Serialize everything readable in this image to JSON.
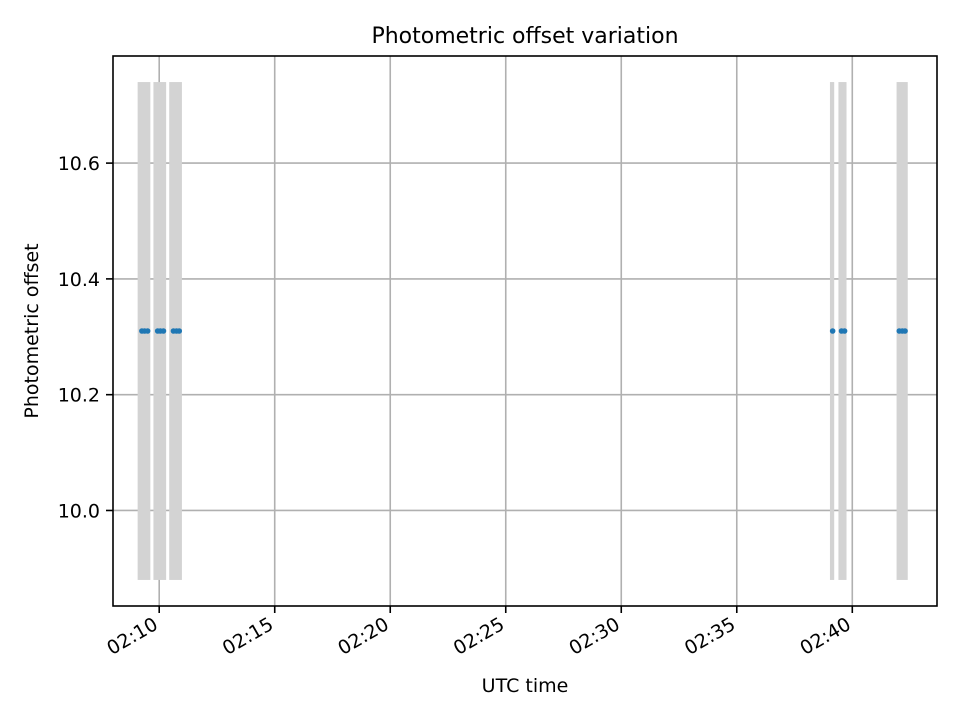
{
  "chart_data": {
    "type": "scatter",
    "title": "Photometric offset variation",
    "xlabel": "UTC time",
    "ylabel": "Photometric offset",
    "xlim": [
      "02:08:00",
      "02:43:40"
    ],
    "ylim": [
      9.835,
      10.785
    ],
    "x_ticks": [
      "02:10",
      "02:15",
      "02:20",
      "02:25",
      "02:30",
      "02:35",
      "02:40"
    ],
    "y_ticks": [
      10.0,
      10.2,
      10.4,
      10.6
    ],
    "grid": true,
    "legend": "none",
    "series": [
      {
        "color": "#1f77b4",
        "marker": "point",
        "points": [
          {
            "x": "02:09:15",
            "y": 10.31
          },
          {
            "x": "02:09:22",
            "y": 10.31
          },
          {
            "x": "02:09:30",
            "y": 10.31
          },
          {
            "x": "02:09:56",
            "y": 10.31
          },
          {
            "x": "02:10:03",
            "y": 10.31
          },
          {
            "x": "02:10:11",
            "y": 10.31
          },
          {
            "x": "02:10:37",
            "y": 10.31
          },
          {
            "x": "02:10:45",
            "y": 10.31
          },
          {
            "x": "02:10:52",
            "y": 10.31
          },
          {
            "x": "02:39:09",
            "y": 10.31
          },
          {
            "x": "02:39:32",
            "y": 10.31
          },
          {
            "x": "02:39:40",
            "y": 10.31
          },
          {
            "x": "02:42:02",
            "y": 10.31
          },
          {
            "x": "02:42:10",
            "y": 10.31
          },
          {
            "x": "02:42:17",
            "y": 10.31
          }
        ]
      }
    ],
    "shaded_intervals": {
      "color": "#d3d3d3",
      "y_range": [
        9.88,
        10.74
      ],
      "spans": [
        {
          "start": "02:09:04",
          "end": "02:09:37"
        },
        {
          "start": "02:09:45",
          "end": "02:10:18"
        },
        {
          "start": "02:10:26",
          "end": "02:10:59"
        },
        {
          "start": "02:39:02",
          "end": "02:39:13"
        },
        {
          "start": "02:39:24",
          "end": "02:39:45"
        },
        {
          "start": "02:41:55",
          "end": "02:42:24"
        }
      ]
    }
  }
}
